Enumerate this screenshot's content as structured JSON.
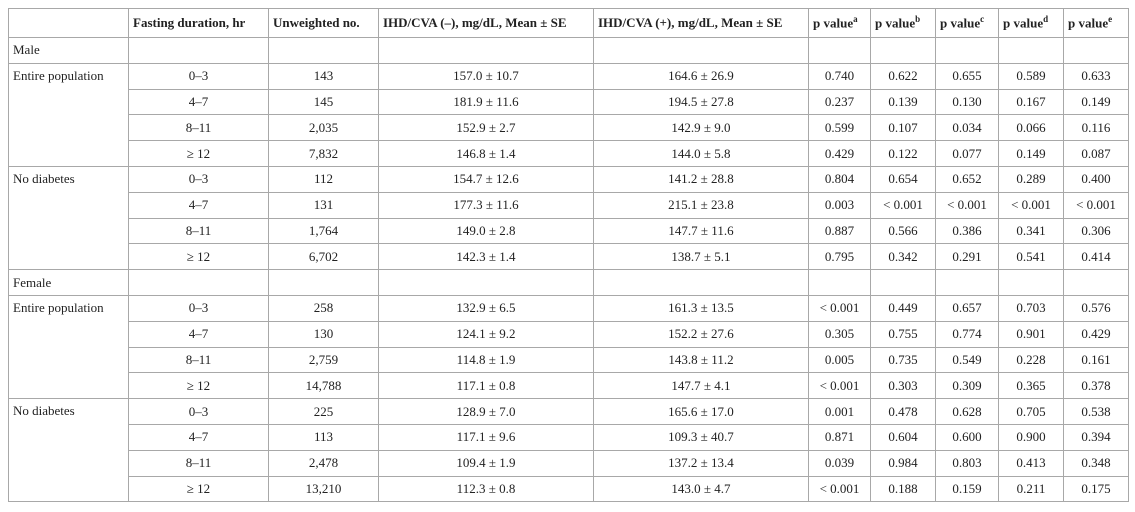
{
  "table": {
    "header": [
      "Fasting duration, hr",
      "Unweighted no.",
      "IHD/CVA (–), mg/dL, Mean ± SE",
      "IHD/CVA (+), mg/dL, Mean ± SE",
      {
        "text": "p value",
        "sup": "a"
      },
      {
        "text": "p value",
        "sup": "b"
      },
      {
        "text": "p value",
        "sup": "c"
      },
      {
        "text": "p value",
        "sup": "d"
      },
      {
        "text": "p value",
        "sup": "e"
      }
    ],
    "sections": [
      {
        "sex": "Male",
        "groups": [
          {
            "name": "Entire population",
            "rows": [
              [
                "0–3",
                "143",
                "157.0 ± 10.7",
                "164.6 ± 26.9",
                "0.740",
                "0.622",
                "0.655",
                "0.589",
                "0.633"
              ],
              [
                "4–7",
                "145",
                "181.9 ± 11.6",
                "194.5 ± 27.8",
                "0.237",
                "0.139",
                "0.130",
                "0.167",
                "0.149"
              ],
              [
                "8–11",
                "2,035",
                "152.9 ± 2.7",
                "142.9 ± 9.0",
                "0.599",
                "0.107",
                "0.034",
                "0.066",
                "0.116"
              ],
              [
                "≥ 12",
                "7,832",
                "146.8 ± 1.4",
                "144.0 ± 5.8",
                "0.429",
                "0.122",
                "0.077",
                "0.149",
                "0.087"
              ]
            ]
          },
          {
            "name": "No diabetes",
            "rows": [
              [
                "0–3",
                "112",
                "154.7 ± 12.6",
                "141.2 ± 28.8",
                "0.804",
                "0.654",
                "0.652",
                "0.289",
                "0.400"
              ],
              [
                "4–7",
                "131",
                "177.3 ± 11.6",
                "215.1 ± 23.8",
                "0.003",
                "< 0.001",
                "< 0.001",
                "< 0.001",
                "< 0.001"
              ],
              [
                "8–11",
                "1,764",
                "149.0 ± 2.8",
                "147.7 ± 11.6",
                "0.887",
                "0.566",
                "0.386",
                "0.341",
                "0.306"
              ],
              [
                "≥ 12",
                "6,702",
                "142.3 ± 1.4",
                "138.7 ± 5.1",
                "0.795",
                "0.342",
                "0.291",
                "0.541",
                "0.414"
              ]
            ]
          }
        ]
      },
      {
        "sex": "Female",
        "groups": [
          {
            "name": "Entire population",
            "rows": [
              [
                "0–3",
                "258",
                "132.9 ± 6.5",
                "161.3 ± 13.5",
                "< 0.001",
                "0.449",
                "0.657",
                "0.703",
                "0.576"
              ],
              [
                "4–7",
                "130",
                "124.1 ± 9.2",
                "152.2 ± 27.6",
                "0.305",
                "0.755",
                "0.774",
                "0.901",
                "0.429"
              ],
              [
                "8–11",
                "2,759",
                "114.8 ± 1.9",
                "143.8 ± 11.2",
                "0.005",
                "0.735",
                "0.549",
                "0.228",
                "0.161"
              ],
              [
                "≥ 12",
                "14,788",
                "117.1 ± 0.8",
                "147.7 ± 4.1",
                "< 0.001",
                "0.303",
                "0.309",
                "0.365",
                "0.378"
              ]
            ]
          },
          {
            "name": "No diabetes",
            "rows": [
              [
                "0–3",
                "225",
                "128.9 ± 7.0",
                "165.6 ± 17.0",
                "0.001",
                "0.478",
                "0.628",
                "0.705",
                "0.538"
              ],
              [
                "4–7",
                "113",
                "117.1 ± 9.6",
                "109.3 ± 40.7",
                "0.871",
                "0.604",
                "0.600",
                "0.900",
                "0.394"
              ],
              [
                "8–11",
                "2,478",
                "109.4 ± 1.9",
                "137.2 ± 13.4",
                "0.039",
                "0.984",
                "0.803",
                "0.413",
                "0.348"
              ],
              [
                "≥ 12",
                "13,210",
                "112.3 ± 0.8",
                "143.0 ± 4.7",
                "< 0.001",
                "0.188",
                "0.159",
                "0.211",
                "0.175"
              ]
            ]
          }
        ]
      }
    ]
  }
}
